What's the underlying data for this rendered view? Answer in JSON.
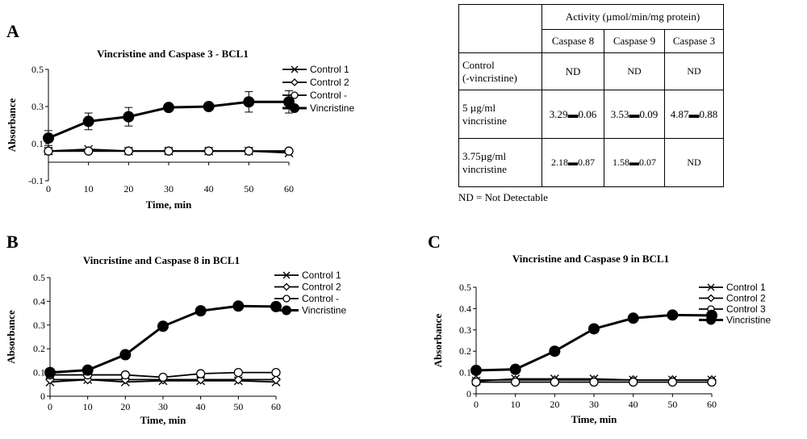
{
  "panels": {
    "A": "A",
    "B": "B",
    "C": "C"
  },
  "chart_data": [
    {
      "id": "A",
      "type": "line",
      "title": "Vincristine and Caspase 3 - BCL1",
      "xlabel": "Time, min",
      "ylabel": "Absorbance",
      "x": [
        0,
        10,
        20,
        30,
        40,
        50,
        60
      ],
      "xlim": [
        0,
        60
      ],
      "ylim": [
        -0.1,
        0.5
      ],
      "yticks": [
        -0.1,
        0.1,
        0.3,
        0.5
      ],
      "ytick_labels": [
        "-0.1",
        "0.1",
        "0.3",
        "0.5"
      ],
      "xtick_labels": [
        "0",
        "10",
        "20",
        "30",
        "40",
        "50",
        "60"
      ],
      "legend_position": "right",
      "series": [
        {
          "name": "Control 1",
          "marker": "x",
          "values": [
            0.06,
            0.07,
            0.06,
            0.06,
            0.06,
            0.06,
            0.05
          ]
        },
        {
          "name": "Control 2",
          "marker": "diamond",
          "values": [
            0.06,
            0.06,
            0.06,
            0.06,
            0.06,
            0.06,
            0.06
          ]
        },
        {
          "name": "Control -",
          "marker": "circle-open",
          "values": [
            0.06,
            0.06,
            0.06,
            0.06,
            0.06,
            0.06,
            0.06
          ]
        },
        {
          "name": "Vincristine",
          "marker": "circle-filled",
          "values": [
            0.13,
            0.22,
            0.245,
            0.295,
            0.3,
            0.325,
            0.325
          ],
          "errors": [
            0.04,
            0.045,
            0.05,
            0.01,
            0.015,
            0.055,
            0.06
          ]
        }
      ]
    },
    {
      "id": "B",
      "type": "line",
      "title": "Vincristine and Caspase 8 in BCL1",
      "xlabel": "Time, min",
      "ylabel": "Absorbance",
      "x": [
        0,
        10,
        20,
        30,
        40,
        50,
        60
      ],
      "xlim": [
        0,
        60
      ],
      "ylim": [
        0,
        0.5
      ],
      "yticks": [
        0,
        0.1,
        0.2,
        0.3,
        0.4,
        0.5
      ],
      "ytick_labels": [
        "0",
        "0.1",
        "0.2",
        "0.3",
        "0.4",
        "0.5"
      ],
      "xtick_labels": [
        "0",
        "10",
        "20",
        "30",
        "40",
        "50",
        "60"
      ],
      "legend_position": "right",
      "series": [
        {
          "name": "Control 1",
          "marker": "x",
          "values": [
            0.06,
            0.07,
            0.06,
            0.065,
            0.065,
            0.065,
            0.06
          ]
        },
        {
          "name": "Control 2",
          "marker": "diamond",
          "values": [
            0.07,
            0.07,
            0.07,
            0.07,
            0.07,
            0.07,
            0.07
          ]
        },
        {
          "name": "Control -",
          "marker": "circle-open",
          "values": [
            0.09,
            0.09,
            0.09,
            0.08,
            0.095,
            0.1,
            0.1
          ]
        },
        {
          "name": "Vincristine",
          "marker": "circle-filled",
          "values": [
            0.1,
            0.11,
            0.175,
            0.295,
            0.36,
            0.38,
            0.378
          ]
        }
      ]
    },
    {
      "id": "C",
      "type": "line",
      "title": "Vincristine and Caspase 9 in BCL1",
      "xlabel": "Time, min",
      "ylabel": "Absorbance",
      "x": [
        0,
        10,
        20,
        30,
        40,
        50,
        60
      ],
      "xlim": [
        0,
        60
      ],
      "ylim": [
        0,
        0.5
      ],
      "yticks": [
        0,
        0.1,
        0.2,
        0.3,
        0.4,
        0.5
      ],
      "ytick_labels": [
        "0",
        "0.1",
        "0.2",
        "0.3",
        "0.4",
        "0.5"
      ],
      "xtick_labels": [
        "0",
        "10",
        "20",
        "30",
        "40",
        "50",
        "60"
      ],
      "legend_position": "right",
      "series": [
        {
          "name": "Control 1",
          "marker": "x",
          "values": [
            0.06,
            0.07,
            0.07,
            0.07,
            0.065,
            0.065,
            0.065
          ]
        },
        {
          "name": "Control 2",
          "marker": "diamond",
          "values": [
            0.065,
            0.065,
            0.065,
            0.065,
            0.065,
            0.065,
            0.065
          ]
        },
        {
          "name": "Control 3",
          "marker": "circle-open",
          "values": [
            0.055,
            0.055,
            0.055,
            0.055,
            0.055,
            0.055,
            0.055
          ]
        },
        {
          "name": "Vincristine",
          "marker": "circle-filled",
          "values": [
            0.11,
            0.115,
            0.2,
            0.305,
            0.355,
            0.37,
            0.368
          ]
        }
      ]
    }
  ],
  "table": {
    "header_group": "Activity (µmol/min/mg protein)",
    "columns": [
      "Caspase 8",
      "Caspase 9",
      "Caspase 3"
    ],
    "rows": [
      {
        "label_line1": "Control",
        "label_line2": "(-vincristine)",
        "values": [
          "ND",
          "ND",
          "ND"
        ]
      },
      {
        "label_line1": "5 µg/ml",
        "label_line2": "vincristine",
        "values": [
          "3.29▬0.06",
          "3.53▬0.09",
          "4.87▬0.88"
        ]
      },
      {
        "label_line1": "3.75µg/ml",
        "label_line2": "vincristine",
        "values": [
          "2.18▬0.87",
          "1.58▬0.07",
          "ND"
        ]
      }
    ],
    "footnote": "ND = Not Detectable"
  }
}
